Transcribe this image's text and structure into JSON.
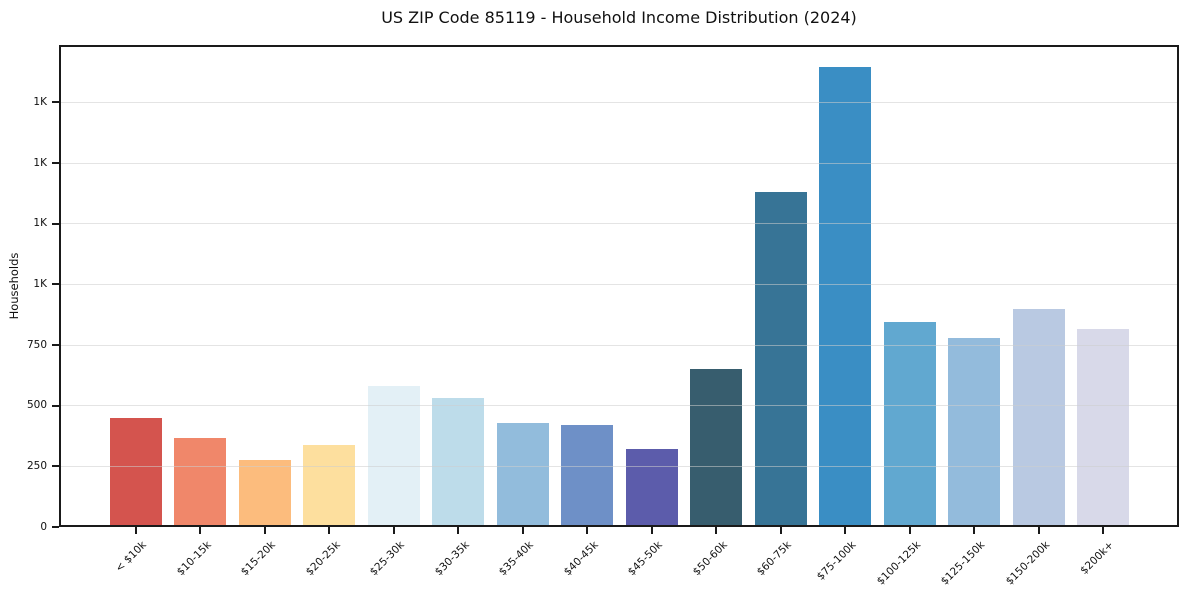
{
  "chart_data": {
    "type": "bar",
    "title": "US ZIP Code 85119 - Household Income Distribution (2024)",
    "xlabel": "",
    "ylabel": "Households",
    "categories": [
      "< $10k",
      "$10-15k",
      "$15-20k",
      "$20-25k",
      "$25-30k",
      "$30-35k",
      "$35-40k",
      "$40-45k",
      "$45-50k",
      "$50-60k",
      "$60-75k",
      "$75-100k",
      "$100-125k",
      "$125-150k",
      "$150-200k",
      "$200k+"
    ],
    "values": [
      450,
      365,
      275,
      340,
      580,
      530,
      430,
      420,
      320,
      650,
      1380,
      1895,
      845,
      780,
      900,
      815
    ],
    "bar_colors": [
      "#d4544e",
      "#f0876a",
      "#fcbc7d",
      "#fddf9e",
      "#e3f0f6",
      "#bddcea",
      "#92bcdc",
      "#6e90c7",
      "#5c5cab",
      "#375d6e",
      "#377496",
      "#3a8ec4",
      "#61a8d0",
      "#93bbdc",
      "#b9c9e2",
      "#d8d9e9"
    ],
    "ylim": [
      0,
      1987
    ],
    "yticks": [
      {
        "value": 0,
        "label": "0"
      },
      {
        "value": 250,
        "label": "250"
      },
      {
        "value": 500,
        "label": "500"
      },
      {
        "value": 750,
        "label": "750"
      },
      {
        "value": 1000,
        "label": "1K"
      },
      {
        "value": 1250,
        "label": "1K"
      },
      {
        "value": 1500,
        "label": "1K"
      },
      {
        "value": 1750,
        "label": "1K"
      }
    ],
    "grid": "horizontal",
    "grid_color": "#e8e8e8",
    "legend": "none",
    "frame_color": "#1a1a1a",
    "background_color": "#ffffff"
  }
}
